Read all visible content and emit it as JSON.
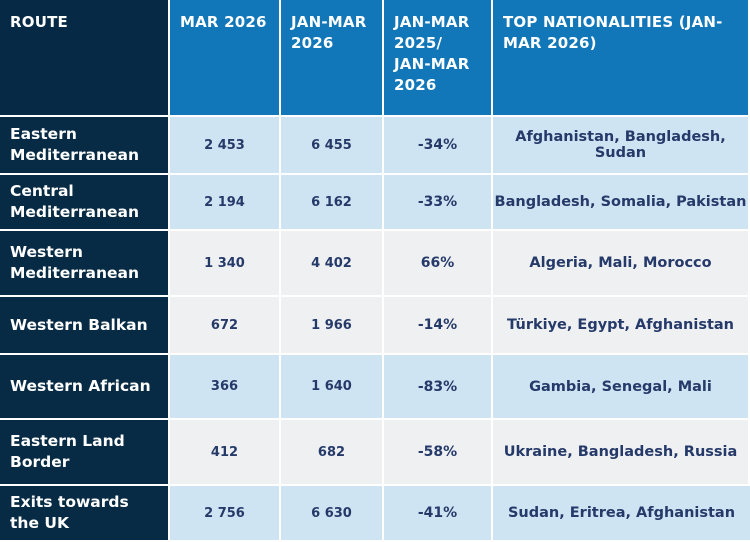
{
  "headers": {
    "route": "ROUTE",
    "mar_2026": "MAR 2026",
    "jan_mar_2026": "JAN-MAR 2026",
    "change": "JAN-MAR 2025/ JAN-MAR 2026",
    "top_nationalities": "TOP NATIONALITIES (JAN-MAR 2026)"
  },
  "rows": [
    {
      "route": "Eastern Mediterranean",
      "mar_2026": "2 453",
      "jan_mar_2026": "6 455",
      "change": "-34%",
      "nationalities": "Afghanistan, Bangladesh, Sudan"
    },
    {
      "route": "Central Mediterranean",
      "mar_2026": "2 194",
      "jan_mar_2026": "6 162",
      "change": "-33%",
      "nationalities": "Bangladesh, Somalia, Pakistan"
    },
    {
      "route": "Western Mediterranean",
      "mar_2026": "1 340",
      "jan_mar_2026": "4 402",
      "change": "66%",
      "nationalities": "Algeria, Mali, Morocco"
    },
    {
      "route": "Western Balkan",
      "mar_2026": "672",
      "jan_mar_2026": "1 966",
      "change": "-14%",
      "nationalities": "Türkiye, Egypt, Afghanistan"
    },
    {
      "route": "Western African",
      "mar_2026": "366",
      "jan_mar_2026": "1 640",
      "change": "-83%",
      "nationalities": "Gambia, Senegal, Mali"
    },
    {
      "route": "Eastern Land Border",
      "mar_2026": "412",
      "jan_mar_2026": "682",
      "change": "-58%",
      "nationalities": "Ukraine, Bangladesh, Russia"
    },
    {
      "route": "Exits towards the UK",
      "mar_2026": "2 756",
      "jan_mar_2026": "6 630",
      "change": "-41%",
      "nationalities": "Sudan, Eritrea, Afghanistan"
    }
  ],
  "colors": {
    "header_route": "#062a46",
    "header_blue": "#1177b9",
    "row_header": "#082b45",
    "cell_light_blue": "#cfe4f2",
    "cell_grey": "#eef0f2",
    "value_text": "#263a6a"
  }
}
